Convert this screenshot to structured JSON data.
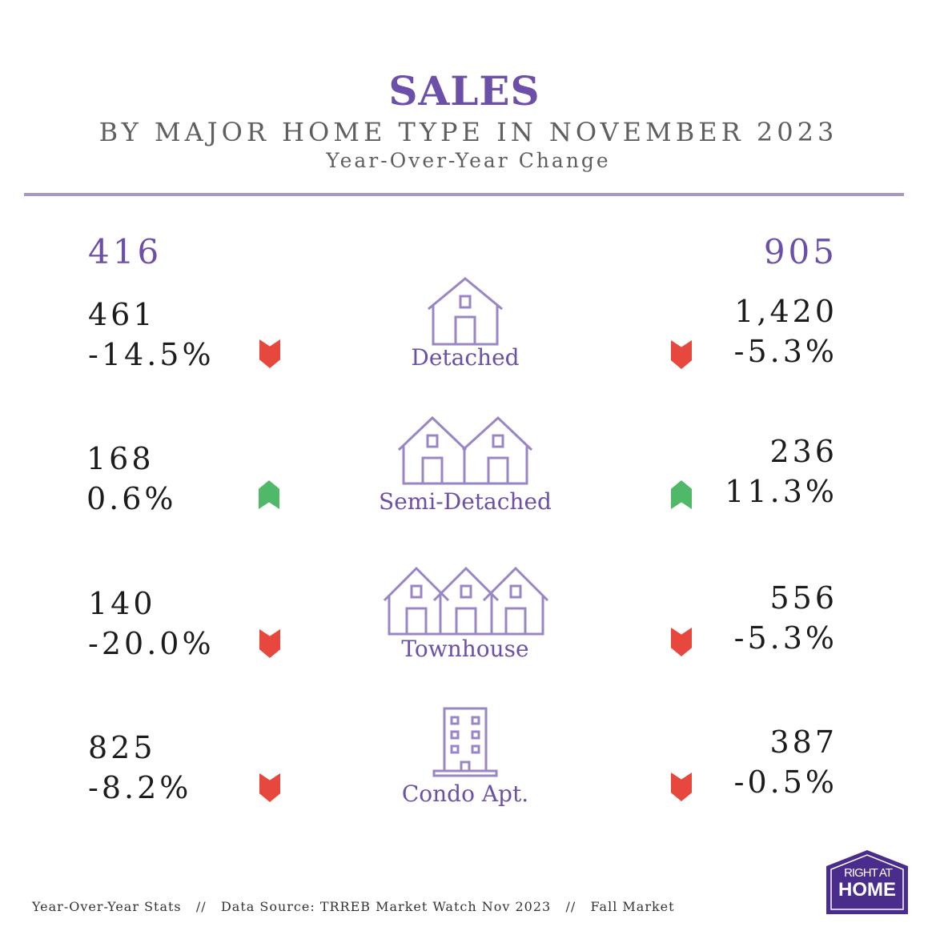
{
  "header": {
    "title": "SALES",
    "subtitle": "BY MAJOR HOME TYPE IN NOVEMBER 2023",
    "caption": "Year-Over-Year Change"
  },
  "regions": {
    "left": "416",
    "right": "905"
  },
  "rows": [
    {
      "type": "Detached",
      "icon": "detached-house-icon",
      "left": {
        "sales": "461",
        "change": "-14.5%",
        "trend": "down"
      },
      "right": {
        "sales": "1,420",
        "change": "-5.3%",
        "trend": "down"
      }
    },
    {
      "type": "Semi-Detached",
      "icon": "semi-detached-house-icon",
      "left": {
        "sales": "168",
        "change": "0.6%",
        "trend": "up"
      },
      "right": {
        "sales": "236",
        "change": "11.3%",
        "trend": "up"
      }
    },
    {
      "type": "Townhouse",
      "icon": "townhouse-icon",
      "left": {
        "sales": "140",
        "change": "-20.0%",
        "trend": "down"
      },
      "right": {
        "sales": "556",
        "change": "-5.3%",
        "trend": "down"
      }
    },
    {
      "type": "Condo Apt.",
      "icon": "condo-building-icon",
      "left": {
        "sales": "825",
        "change": "-8.2%",
        "trend": "down"
      },
      "right": {
        "sales": "387",
        "change": "-0.5%",
        "trend": "down"
      }
    }
  ],
  "colors": {
    "accent": "#6b4fa8",
    "down": "#e8473e",
    "up": "#4fb869"
  },
  "footer": {
    "part1": "Year-Over-Year Stats",
    "sep": "//",
    "part2": "Data Source: TRREB Market Watch Nov 2023",
    "part3": "Fall Market"
  },
  "logo": {
    "line1": "RIGHT AT",
    "line2": "HOME"
  }
}
